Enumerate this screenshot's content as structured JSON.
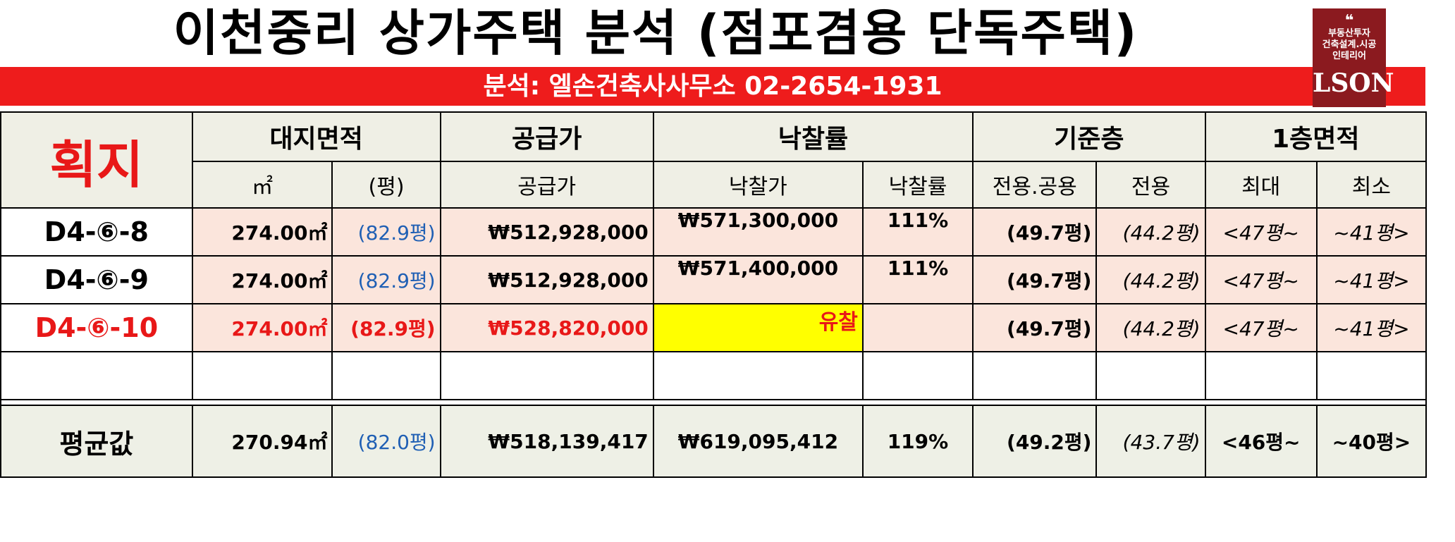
{
  "title": "이천중리 상가주택 분석   (점포겸용 단독주택)",
  "subtitle": "분석: 엘손건축사사무소 02-2654-1931",
  "logo": {
    "quote": "❝",
    "lines": [
      "부동산투자",
      "건축설계.시공",
      "인테리어"
    ],
    "brand": "LSON"
  },
  "header": {
    "corner": "획지",
    "group": [
      "대지면적",
      "공급가",
      "낙찰률",
      "기준층",
      "1층면적"
    ],
    "sub": [
      "㎡",
      "(평)",
      "공급가",
      "낙찰가",
      "낙찰률",
      "전용.공용",
      "전용",
      "최대",
      "최소"
    ]
  },
  "rows": [
    {
      "lot": "D4-⑥-8",
      "area_m2": "274.00㎡",
      "area_py": "(82.9평)",
      "supply": "₩512,928,000",
      "bid_price": "₩571,300,000",
      "bid_rate": "111%",
      "floor_total": "(49.7평)",
      "floor_excl": "(44.2평)",
      "first_max": "<47평~",
      "first_min": "~41평>"
    },
    {
      "lot": "D4-⑥-9",
      "area_m2": "274.00㎡",
      "area_py": "(82.9평)",
      "supply": "₩512,928,000",
      "bid_price": "₩571,400,000",
      "bid_rate": "111%",
      "floor_total": "(49.7평)",
      "floor_excl": "(44.2평)",
      "first_max": "<47평~",
      "first_min": "~41평>"
    },
    {
      "lot": "D4-⑥-10",
      "area_m2": "274.00㎡",
      "area_py": "(82.9평)",
      "supply": "₩528,820,000",
      "bid_price": "유찰",
      "bid_rate": "",
      "floor_total": "(49.7평)",
      "floor_excl": "(44.2평)",
      "first_max": "<47평~",
      "first_min": "~41평>"
    }
  ],
  "average": {
    "label": "평균값",
    "area_m2": "270.94㎡",
    "area_py": "(82.0평)",
    "supply": "₩518,139,417",
    "bid_price": "₩619,095,412",
    "bid_rate": "119%",
    "floor_total": "(49.2평)",
    "floor_excl": "(43.7평)",
    "first_max": "<46평~",
    "first_min": "~40평>"
  },
  "colors": {
    "red_bar": "#ee1c1c",
    "logo_bg": "#8b1a1f",
    "row_bg": "#fbe5dc",
    "header_bg": "#efefe5",
    "highlight": "#ffff00",
    "blue_text": "#1f5fb4"
  }
}
